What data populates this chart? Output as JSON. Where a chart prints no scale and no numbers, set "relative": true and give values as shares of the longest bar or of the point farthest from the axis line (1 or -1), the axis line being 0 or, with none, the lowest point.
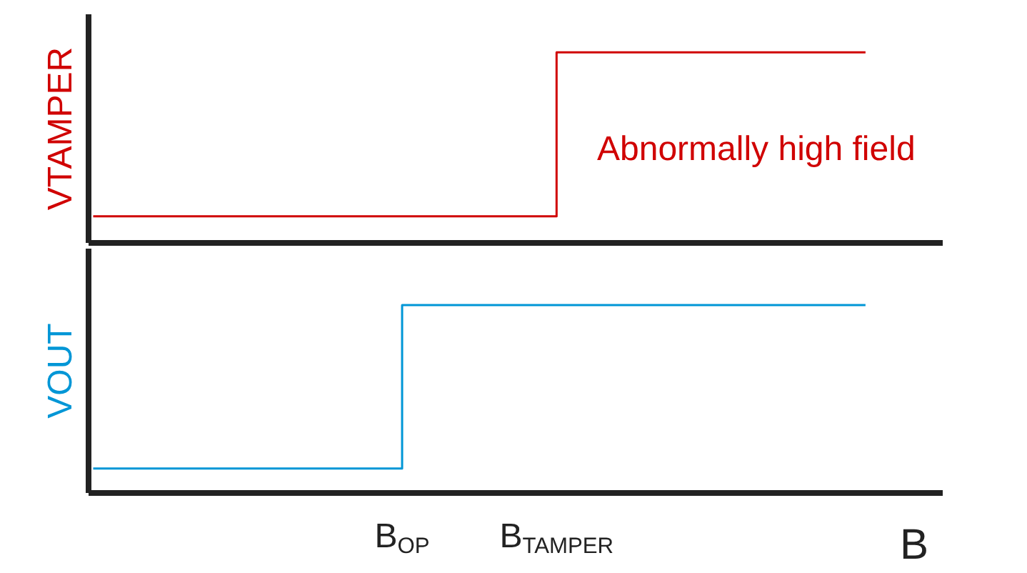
{
  "chart_data": [
    {
      "type": "step",
      "ylabel": "VTAMPER",
      "categories": [
        null,
        null,
        null,
        null,
        null,
        null
      ],
      "relative": true,
      "tick_labels": false,
      "annotations": [
        "Abnormally high field"
      ],
      "series": [
        {
          "color": "#d00000",
          "values": [
            0.14,
            0.14,
            0.14,
            1,
            1,
            1
          ]
        }
      ]
    },
    {
      "type": "step",
      "ylabel": "VOUT",
      "xlabel": "B",
      "categories": [
        null,
        null,
        "B$_{OP}$",
        "B$_{TAMPER}$",
        null,
        null
      ],
      "relative": true,
      "tick_labels": "x",
      "series": [
        {
          "color": "#0096d6",
          "values": [
            0.13,
            0.13,
            1,
            1,
            1,
            1
          ]
        }
      ]
    }
  ]
}
